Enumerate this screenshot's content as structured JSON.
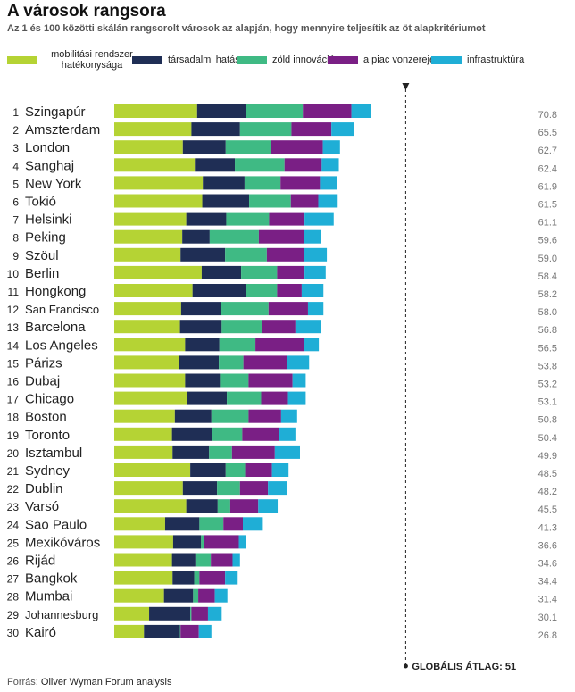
{
  "title": "A városok rangsora",
  "subtitle": "Az 1 és 100 közötti skálán rangsorolt városok az alapján, hogy mennyire teljesítik az öt alapkritériumot",
  "source_label": "Forrás:",
  "source_text": "Oliver Wyman Forum analysis",
  "colors": {
    "mobilitasi": "#b5d334",
    "tarsadalmi": "#1f2e55",
    "zold": "#3fba84",
    "piac": "#7a1f85",
    "infra": "#1faed6",
    "text": "#222222",
    "score": "#777777"
  },
  "chart_data": {
    "type": "bar",
    "orientation": "horizontal",
    "stacked": true,
    "legend_position": "top",
    "series": [
      {
        "name": "mobilitási rendszer hatékonysága",
        "color_key": "mobilitasi"
      },
      {
        "name": "társadalmi hatás",
        "color_key": "tarsadalmi"
      },
      {
        "name": "zöld innováció",
        "color_key": "zold"
      },
      {
        "name": "a piac vonzereje",
        "color_key": "piac"
      },
      {
        "name": "infrastruktúra",
        "color_key": "infra"
      }
    ],
    "cities": [
      {
        "rank": "1",
        "name": "Szingapúr",
        "score": "70.8",
        "values": [
          14.5,
          8.5,
          10,
          8.5,
          3.5
        ]
      },
      {
        "rank": "2",
        "name": "Amszterdam",
        "score": "65.5",
        "values": [
          13.5,
          8.5,
          9,
          7,
          4
        ]
      },
      {
        "rank": "3",
        "name": "London",
        "score": "62.7",
        "values": [
          12,
          7.5,
          8,
          9,
          3
        ]
      },
      {
        "rank": "4",
        "name": "Sanghaj",
        "score": "62.4",
        "values": [
          14.1,
          7,
          8.7,
          6.5,
          3
        ]
      },
      {
        "rank": "5",
        "name": "New York",
        "score": "61.9",
        "values": [
          15.5,
          7.3,
          6.3,
          6.9,
          3
        ]
      },
      {
        "rank": "6",
        "name": "Tokió",
        "score": "61.5",
        "values": [
          15.4,
          8.2,
          7.3,
          4.8,
          3.4
        ]
      },
      {
        "rank": "7",
        "name": "Helsinki",
        "score": "61.1",
        "values": [
          12.6,
          7,
          7.5,
          6.2,
          5.1
        ]
      },
      {
        "rank": "8",
        "name": "Peking",
        "score": "59.6",
        "values": [
          11.9,
          4.8,
          8.6,
          7.9,
          3
        ]
      },
      {
        "rank": "9",
        "name": "Szöul",
        "score": "59.0",
        "values": [
          11.6,
          7.8,
          7.3,
          6.5,
          4
        ]
      },
      {
        "rank": "10",
        "name": "Berlin",
        "score": "58.4",
        "values": [
          15.3,
          6.9,
          6.3,
          4.8,
          3.7
        ]
      },
      {
        "rank": "11",
        "name": "Hongkong",
        "score": "58.2",
        "values": [
          13.7,
          9.3,
          5.5,
          4.3,
          3.8
        ]
      },
      {
        "rank": "12",
        "name": "San Francisco",
        "score": "58.0",
        "values": [
          11.7,
          6.9,
          8.4,
          6.9,
          2.7
        ]
      },
      {
        "rank": "13",
        "name": "Barcelona",
        "score": "56.8",
        "values": [
          11.5,
          7.3,
          7.1,
          5.8,
          4.4
        ]
      },
      {
        "rank": "14",
        "name": "Los Angeles",
        "score": "56.5",
        "values": [
          12.4,
          6,
          6.3,
          8.5,
          2.6
        ]
      },
      {
        "rank": "15",
        "name": "Párizs",
        "score": "53.8",
        "values": [
          11.3,
          7,
          4.3,
          7.6,
          3.9
        ]
      },
      {
        "rank": "16",
        "name": "Dubaj",
        "score": "53.2",
        "values": [
          12.4,
          6.1,
          5,
          7.7,
          2.3
        ]
      },
      {
        "rank": "17",
        "name": "Chicago",
        "score": "53.1",
        "values": [
          12.7,
          7,
          6,
          4.7,
          3.1
        ]
      },
      {
        "rank": "18",
        "name": "Boston",
        "score": "50.8",
        "values": [
          10.6,
          6.4,
          6.5,
          5.7,
          2.8
        ]
      },
      {
        "rank": "19",
        "name": "Toronto",
        "score": "50.4",
        "values": [
          10.1,
          7,
          5.3,
          6.5,
          2.8
        ]
      },
      {
        "rank": "20",
        "name": "Isztambul",
        "score": "49.9",
        "values": [
          10.2,
          6.4,
          4,
          7.5,
          4.4
        ]
      },
      {
        "rank": "21",
        "name": "Sydney",
        "score": "48.5",
        "values": [
          13.3,
          6.2,
          3.4,
          4.7,
          2.9
        ]
      },
      {
        "rank": "22",
        "name": "Dublin",
        "score": "48.2",
        "values": [
          12,
          6,
          4,
          4.9,
          3.4
        ]
      },
      {
        "rank": "23",
        "name": "Varsó",
        "score": "45.5",
        "values": [
          12.6,
          5.5,
          2.2,
          4.9,
          3.4
        ]
      },
      {
        "rank": "24",
        "name": "Sao Paulo",
        "score": "41.3",
        "values": [
          8.9,
          6,
          4.2,
          3.4,
          3.5
        ]
      },
      {
        "rank": "25",
        "name": "Mexikóváros",
        "score": "36.6",
        "values": [
          10.3,
          4.9,
          0.5,
          6.1,
          1.3
        ]
      },
      {
        "rank": "26",
        "name": "Rijád",
        "score": "34.6",
        "values": [
          10.1,
          4.1,
          2.7,
          3.8,
          1.3
        ]
      },
      {
        "rank": "27",
        "name": "Bangkok",
        "score": "34.4",
        "values": [
          10.2,
          3.8,
          0.9,
          4.5,
          2.2
        ]
      },
      {
        "rank": "28",
        "name": "Mumbai",
        "score": "31.4",
        "values": [
          8.7,
          5.1,
          0.9,
          2.9,
          2.2
        ]
      },
      {
        "rank": "29",
        "name": "Johannesburg",
        "score": "30.1",
        "values": [
          6.1,
          7.2,
          0.2,
          2.9,
          2.4
        ]
      },
      {
        "rank": "30",
        "name": "Kairó",
        "score": "26.8",
        "values": [
          5.2,
          6.3,
          0.1,
          3.2,
          2.2
        ]
      }
    ],
    "average": {
      "value": 51,
      "label": "GLOBÁLIS ÁTLAG: 51"
    }
  }
}
